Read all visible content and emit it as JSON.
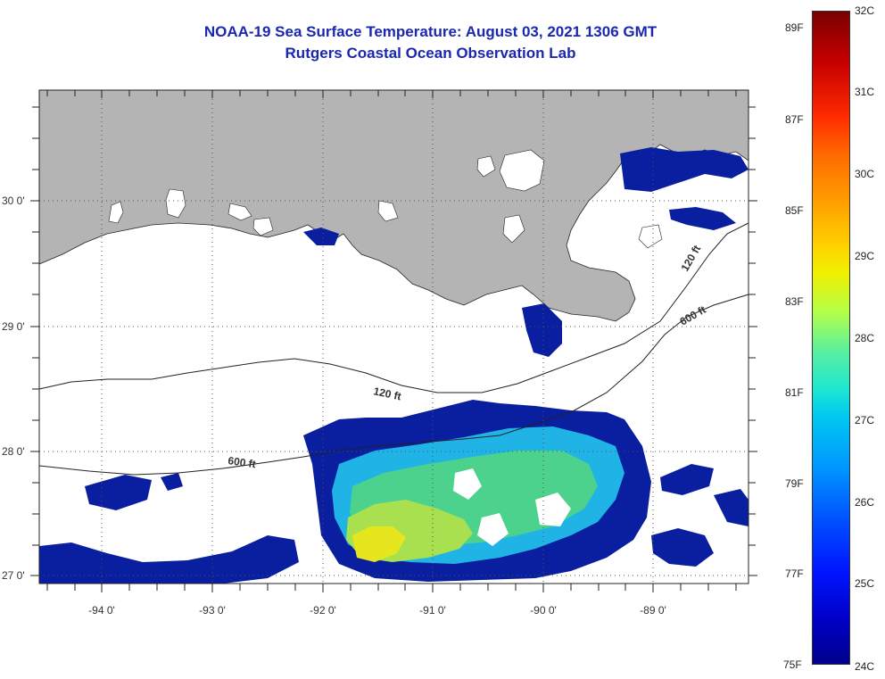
{
  "title": {
    "line1": "NOAA-19 Sea Surface Temperature:  August 03, 2021 1306 GMT",
    "line2": "Rutgers Coastal Ocean Observation Lab"
  },
  "axes": {
    "lat_labels": [
      "30 0'",
      "29 0'",
      "28 0'",
      "27 0'"
    ],
    "lon_labels": [
      "-94 0'",
      "-93 0'",
      "-92 0'",
      "-91 0'",
      "-90 0'",
      "-89 0'"
    ]
  },
  "isobaths": {
    "label_120_left": "120 ft",
    "label_120_right": "120 ft",
    "label_600_left": "600 ft",
    "label_600_right": "600 ft"
  },
  "colorbar": {
    "celsius": [
      "32C",
      "31C",
      "30C",
      "29C",
      "28C",
      "27C",
      "26C",
      "25C",
      "24C"
    ],
    "fahrenheit": [
      "89F",
      "87F",
      "85F",
      "83F",
      "81F",
      "79F",
      "77F",
      "75F"
    ]
  },
  "colors": {
    "land": "#b4b4b4",
    "title": "#1a28b0",
    "sst_cool": "#0a1ea0",
    "sst_mid": "#20b4e6",
    "sst_warm": "#e6e61e"
  }
}
